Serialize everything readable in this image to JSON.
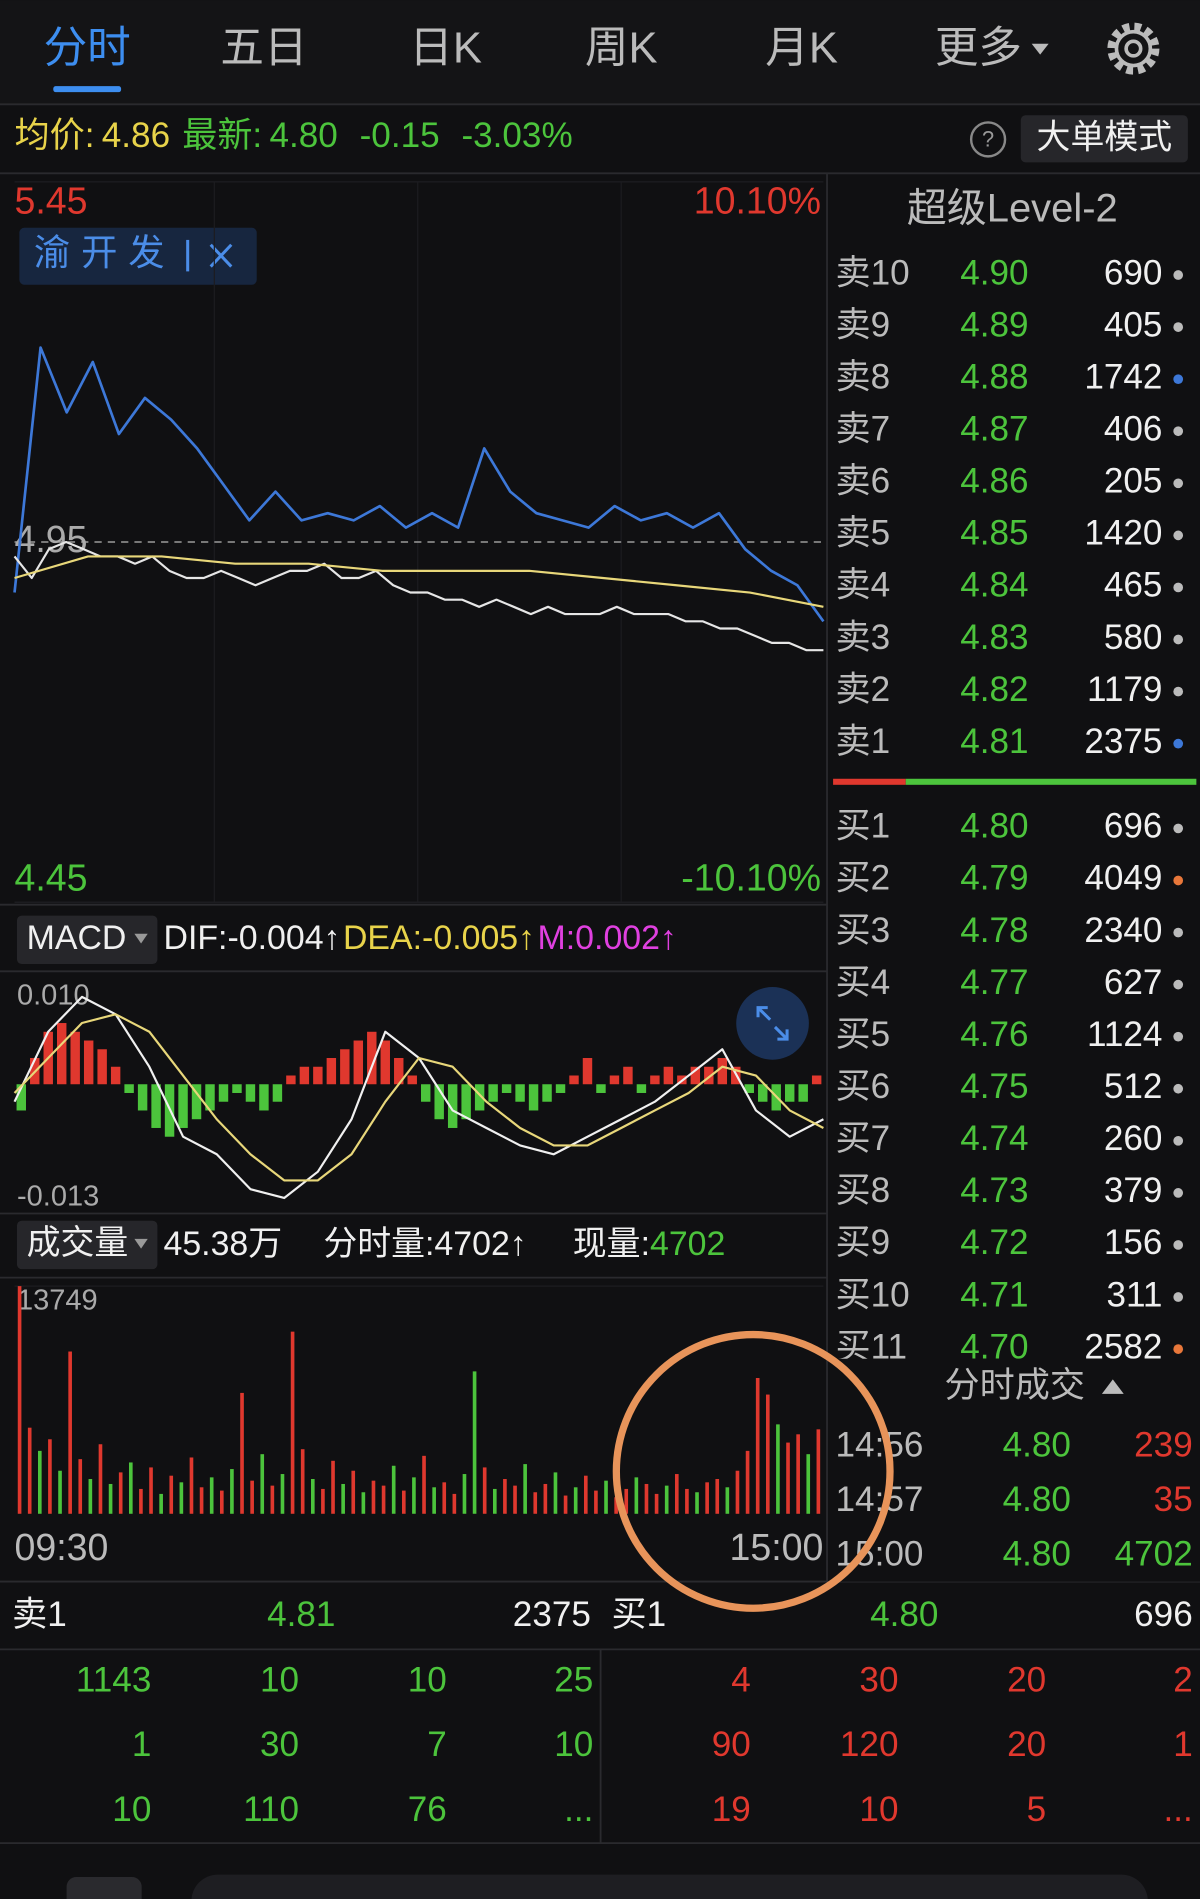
{
  "tabs": {
    "items": [
      "分时",
      "五日",
      "日K",
      "周K",
      "月K",
      "更多"
    ],
    "active": 0
  },
  "quote": {
    "avg_label": "均价:",
    "avg": "4.86",
    "last_label": "最新:",
    "last": "4.80",
    "change": "-0.15",
    "change_pct": "-3.03%",
    "help": "?",
    "mode": "大单模式"
  },
  "chart_data": [
    {
      "type": "line",
      "ylim": [
        4.45,
        5.45
      ],
      "yticks": [
        5.45,
        4.95,
        4.45
      ],
      "y2lim": [
        -10.1,
        10.1
      ],
      "y2ticks": [
        {
          "value": 10.1,
          "label": "10.10%"
        },
        {
          "value": -10.1,
          "label": "-10.10%"
        }
      ],
      "series": [
        {
          "name": "渝开发",
          "color": "#3d78d8",
          "values": [
            4.88,
            5.22,
            5.13,
            5.2,
            5.1,
            5.15,
            5.12,
            5.08,
            5.03,
            4.98,
            5.02,
            4.98,
            4.99,
            4.98,
            5.0,
            4.97,
            4.99,
            4.97,
            5.08,
            5.02,
            4.99,
            4.98,
            4.97,
            5.0,
            4.98,
            4.99,
            4.97,
            4.99,
            4.94,
            4.91,
            4.89,
            4.84
          ]
        },
        {
          "color": "#e6e6e6",
          "values": [
            4.93,
            4.9,
            4.94,
            4.95,
            4.94,
            4.93,
            4.93,
            4.92,
            4.93,
            4.91,
            4.9,
            4.9,
            4.91,
            4.9,
            4.89,
            4.9,
            4.91,
            4.91,
            4.92,
            4.9,
            4.9,
            4.91,
            4.89,
            4.88,
            4.88,
            4.87,
            4.87,
            4.86,
            4.87,
            4.86,
            4.85,
            4.86,
            4.85,
            4.85,
            4.85,
            4.86,
            4.85,
            4.85,
            4.85,
            4.84,
            4.84,
            4.83,
            4.83,
            4.82,
            4.81,
            4.81,
            4.8,
            4.8
          ]
        },
        {
          "color": "#e8d77a",
          "values": [
            4.9,
            4.93,
            4.93,
            4.92,
            4.92,
            4.91,
            4.91,
            4.91,
            4.9,
            4.89,
            4.88,
            4.86
          ]
        }
      ]
    },
    {
      "type": "macd",
      "selector": "MACD",
      "dif_label": "DIF:-0.004↑",
      "dea_label": "DEA:-0.005↑",
      "m_label": "M:0.002↑",
      "ylim": [
        -0.0145,
        0.0125
      ],
      "yticks": [
        {
          "value": 0.01,
          "label": "0.010"
        },
        -0.013
      ],
      "histogram": {
        "up_color": "#e0382e",
        "down_color": "#4cc43c",
        "values": [
          -0.003,
          0.003,
          0.006,
          0.007,
          0.006,
          0.005,
          0.004,
          0.002,
          -0.001,
          -0.003,
          -0.005,
          -0.006,
          -0.005,
          -0.004,
          -0.003,
          -0.002,
          -0.001,
          -0.002,
          -0.003,
          -0.002,
          0.001,
          0.002,
          0.002,
          0.003,
          0.004,
          0.005,
          0.006,
          0.005,
          0.003,
          0.001,
          -0.002,
          -0.004,
          -0.005,
          -0.004,
          -0.003,
          -0.002,
          -0.001,
          -0.002,
          -0.003,
          -0.002,
          -0.001,
          0.001,
          0.003,
          -0.001,
          0.001,
          0.002,
          -0.001,
          0.001,
          0.002,
          0.001,
          0.002,
          0.002,
          0.003,
          0.002,
          -0.001,
          -0.002,
          -0.003,
          -0.002,
          -0.002,
          0.001
        ]
      },
      "series": [
        {
          "color": "#f0f0f0",
          "values": [
            -0.002,
            0.006,
            0.01,
            0.008,
            0.002,
            -0.006,
            -0.008,
            -0.012,
            -0.013,
            -0.01,
            -0.004,
            0.006,
            0.003,
            -0.003,
            -0.005,
            -0.007,
            -0.008,
            -0.006,
            -0.004,
            -0.002,
            0.001,
            0.004,
            -0.003,
            -0.006,
            -0.004
          ]
        },
        {
          "color": "#e8d77a",
          "values": [
            -0.001,
            0.003,
            0.007,
            0.008,
            0.006,
            0.001,
            -0.004,
            -0.008,
            -0.011,
            -0.011,
            -0.008,
            -0.002,
            0.003,
            0.002,
            -0.002,
            -0.005,
            -0.007,
            -0.007,
            -0.005,
            -0.003,
            -0.001,
            0.002,
            0.001,
            -0.003,
            -0.005
          ]
        }
      ]
    },
    {
      "type": "bar",
      "selector": "成交量",
      "total": "45.38万",
      "minute_label": "分时量:4702↑",
      "current_label": "现量:",
      "current": "4702",
      "ylim": [
        0,
        13749
      ],
      "yticks": [
        13749
      ],
      "up_color": "#e0382e",
      "down_color": "#4cc43c",
      "values": [
        13749,
        5200,
        3800,
        4500,
        2600,
        9800,
        3300,
        2100,
        4200,
        1800,
        2500,
        3100,
        1500,
        2800,
        1200,
        2300,
        1900,
        3400,
        1600,
        2200,
        1400,
        2700,
        7300,
        2000,
        3600,
        1700,
        2400,
        11000,
        3900,
        2100,
        1500,
        3200,
        1800,
        2600,
        1300,
        2000,
        1700,
        2900,
        1400,
        2200,
        3500,
        1600,
        1900,
        1200,
        2400,
        8600,
        2800,
        1500,
        2100,
        1700,
        3000,
        1300,
        1800,
        2500,
        1100,
        1600,
        2300,
        1400,
        2000,
        1000,
        1500,
        2200,
        1800,
        1200,
        1700,
        2400,
        1500,
        1300,
        1900,
        2100,
        1600,
        2600,
        3800,
        8200,
        7200,
        5400,
        4300,
        4800,
        3600,
        5100
      ],
      "rising": [
        true,
        true,
        false,
        true,
        false,
        true,
        true,
        false,
        true,
        false,
        true,
        false,
        true,
        true,
        false,
        true,
        false,
        true,
        true,
        false,
        true,
        false,
        true,
        true,
        false,
        true,
        false,
        true,
        true,
        false,
        true,
        true,
        false,
        true,
        false,
        true,
        true,
        false,
        true,
        false,
        true,
        false,
        true,
        true,
        false,
        false,
        true,
        false,
        true,
        true,
        false,
        true,
        true,
        false,
        true,
        false,
        true,
        true,
        false,
        true,
        true,
        false,
        true,
        true,
        false,
        true,
        true,
        false,
        true,
        true,
        false,
        true,
        true,
        true,
        true,
        false,
        true,
        true,
        false,
        true
      ],
      "x_labels": [
        "09:30",
        "15:00"
      ]
    }
  ],
  "order_book": {
    "title": "超级Level-2",
    "asks": [
      {
        "label": "卖10",
        "price": "4.90",
        "qty": 690,
        "dot": "#bbbbbb"
      },
      {
        "label": "卖9",
        "price": "4.89",
        "qty": 405,
        "dot": "#bbbbbb"
      },
      {
        "label": "卖8",
        "price": "4.88",
        "qty": 1742,
        "dot": "#3d78d8"
      },
      {
        "label": "卖7",
        "price": "4.87",
        "qty": 406,
        "dot": "#bbbbbb"
      },
      {
        "label": "卖6",
        "price": "4.86",
        "qty": 205,
        "dot": "#bbbbbb"
      },
      {
        "label": "卖5",
        "price": "4.85",
        "qty": 1420,
        "dot": "#bbbbbb"
      },
      {
        "label": "卖4",
        "price": "4.84",
        "qty": 465,
        "dot": "#bbbbbb"
      },
      {
        "label": "卖3",
        "price": "4.83",
        "qty": 580,
        "dot": "#bbbbbb"
      },
      {
        "label": "卖2",
        "price": "4.82",
        "qty": 1179,
        "dot": "#bbbbbb"
      },
      {
        "label": "卖1",
        "price": "4.81",
        "qty": 2375,
        "dot": "#3d78d8"
      }
    ],
    "bids": [
      {
        "label": "买1",
        "price": "4.80",
        "qty": 696,
        "dot": "#bbbbbb"
      },
      {
        "label": "买2",
        "price": "4.79",
        "qty": 4049,
        "dot": "#e8773a"
      },
      {
        "label": "买3",
        "price": "4.78",
        "qty": 2340,
        "dot": "#bbbbbb"
      },
      {
        "label": "买4",
        "price": "4.77",
        "qty": 627,
        "dot": "#bbbbbb"
      },
      {
        "label": "买5",
        "price": "4.76",
        "qty": 1124,
        "dot": "#bbbbbb"
      },
      {
        "label": "买6",
        "price": "4.75",
        "qty": 512,
        "dot": "#bbbbbb"
      },
      {
        "label": "买7",
        "price": "4.74",
        "qty": 260,
        "dot": "#bbbbbb"
      },
      {
        "label": "买8",
        "price": "4.73",
        "qty": 379,
        "dot": "#bbbbbb"
      },
      {
        "label": "买9",
        "price": "4.72",
        "qty": 156,
        "dot": "#bbbbbb"
      },
      {
        "label": "买10",
        "price": "4.71",
        "qty": 311,
        "dot": "#bbbbbb"
      },
      {
        "label": "买11",
        "price": "4.70",
        "qty": 2582,
        "dot": "#e8773a"
      }
    ]
  },
  "ticks": {
    "title": "分时成交",
    "rows": [
      {
        "time": "14:56",
        "price": "4.80",
        "qty": 239,
        "color": "#e0382e"
      },
      {
        "time": "14:57",
        "price": "4.80",
        "qty": 35,
        "color": "#e0382e"
      },
      {
        "time": "15:00",
        "price": "4.80",
        "qty": 4702,
        "color": "#4cc43c"
      }
    ]
  },
  "summary": {
    "ask": {
      "label": "卖1",
      "price": "4.81",
      "qty": 2375
    },
    "bid": {
      "label": "买1",
      "price": "4.80",
      "qty": 696
    },
    "ask_queue": [
      [
        1143,
        10,
        10,
        25
      ],
      [
        1,
        30,
        7,
        10
      ],
      [
        10,
        110,
        76,
        "..."
      ]
    ],
    "bid_queue": [
      [
        4,
        30,
        20,
        2
      ],
      [
        90,
        120,
        20,
        1
      ],
      [
        19,
        10,
        5,
        "..."
      ]
    ]
  }
}
